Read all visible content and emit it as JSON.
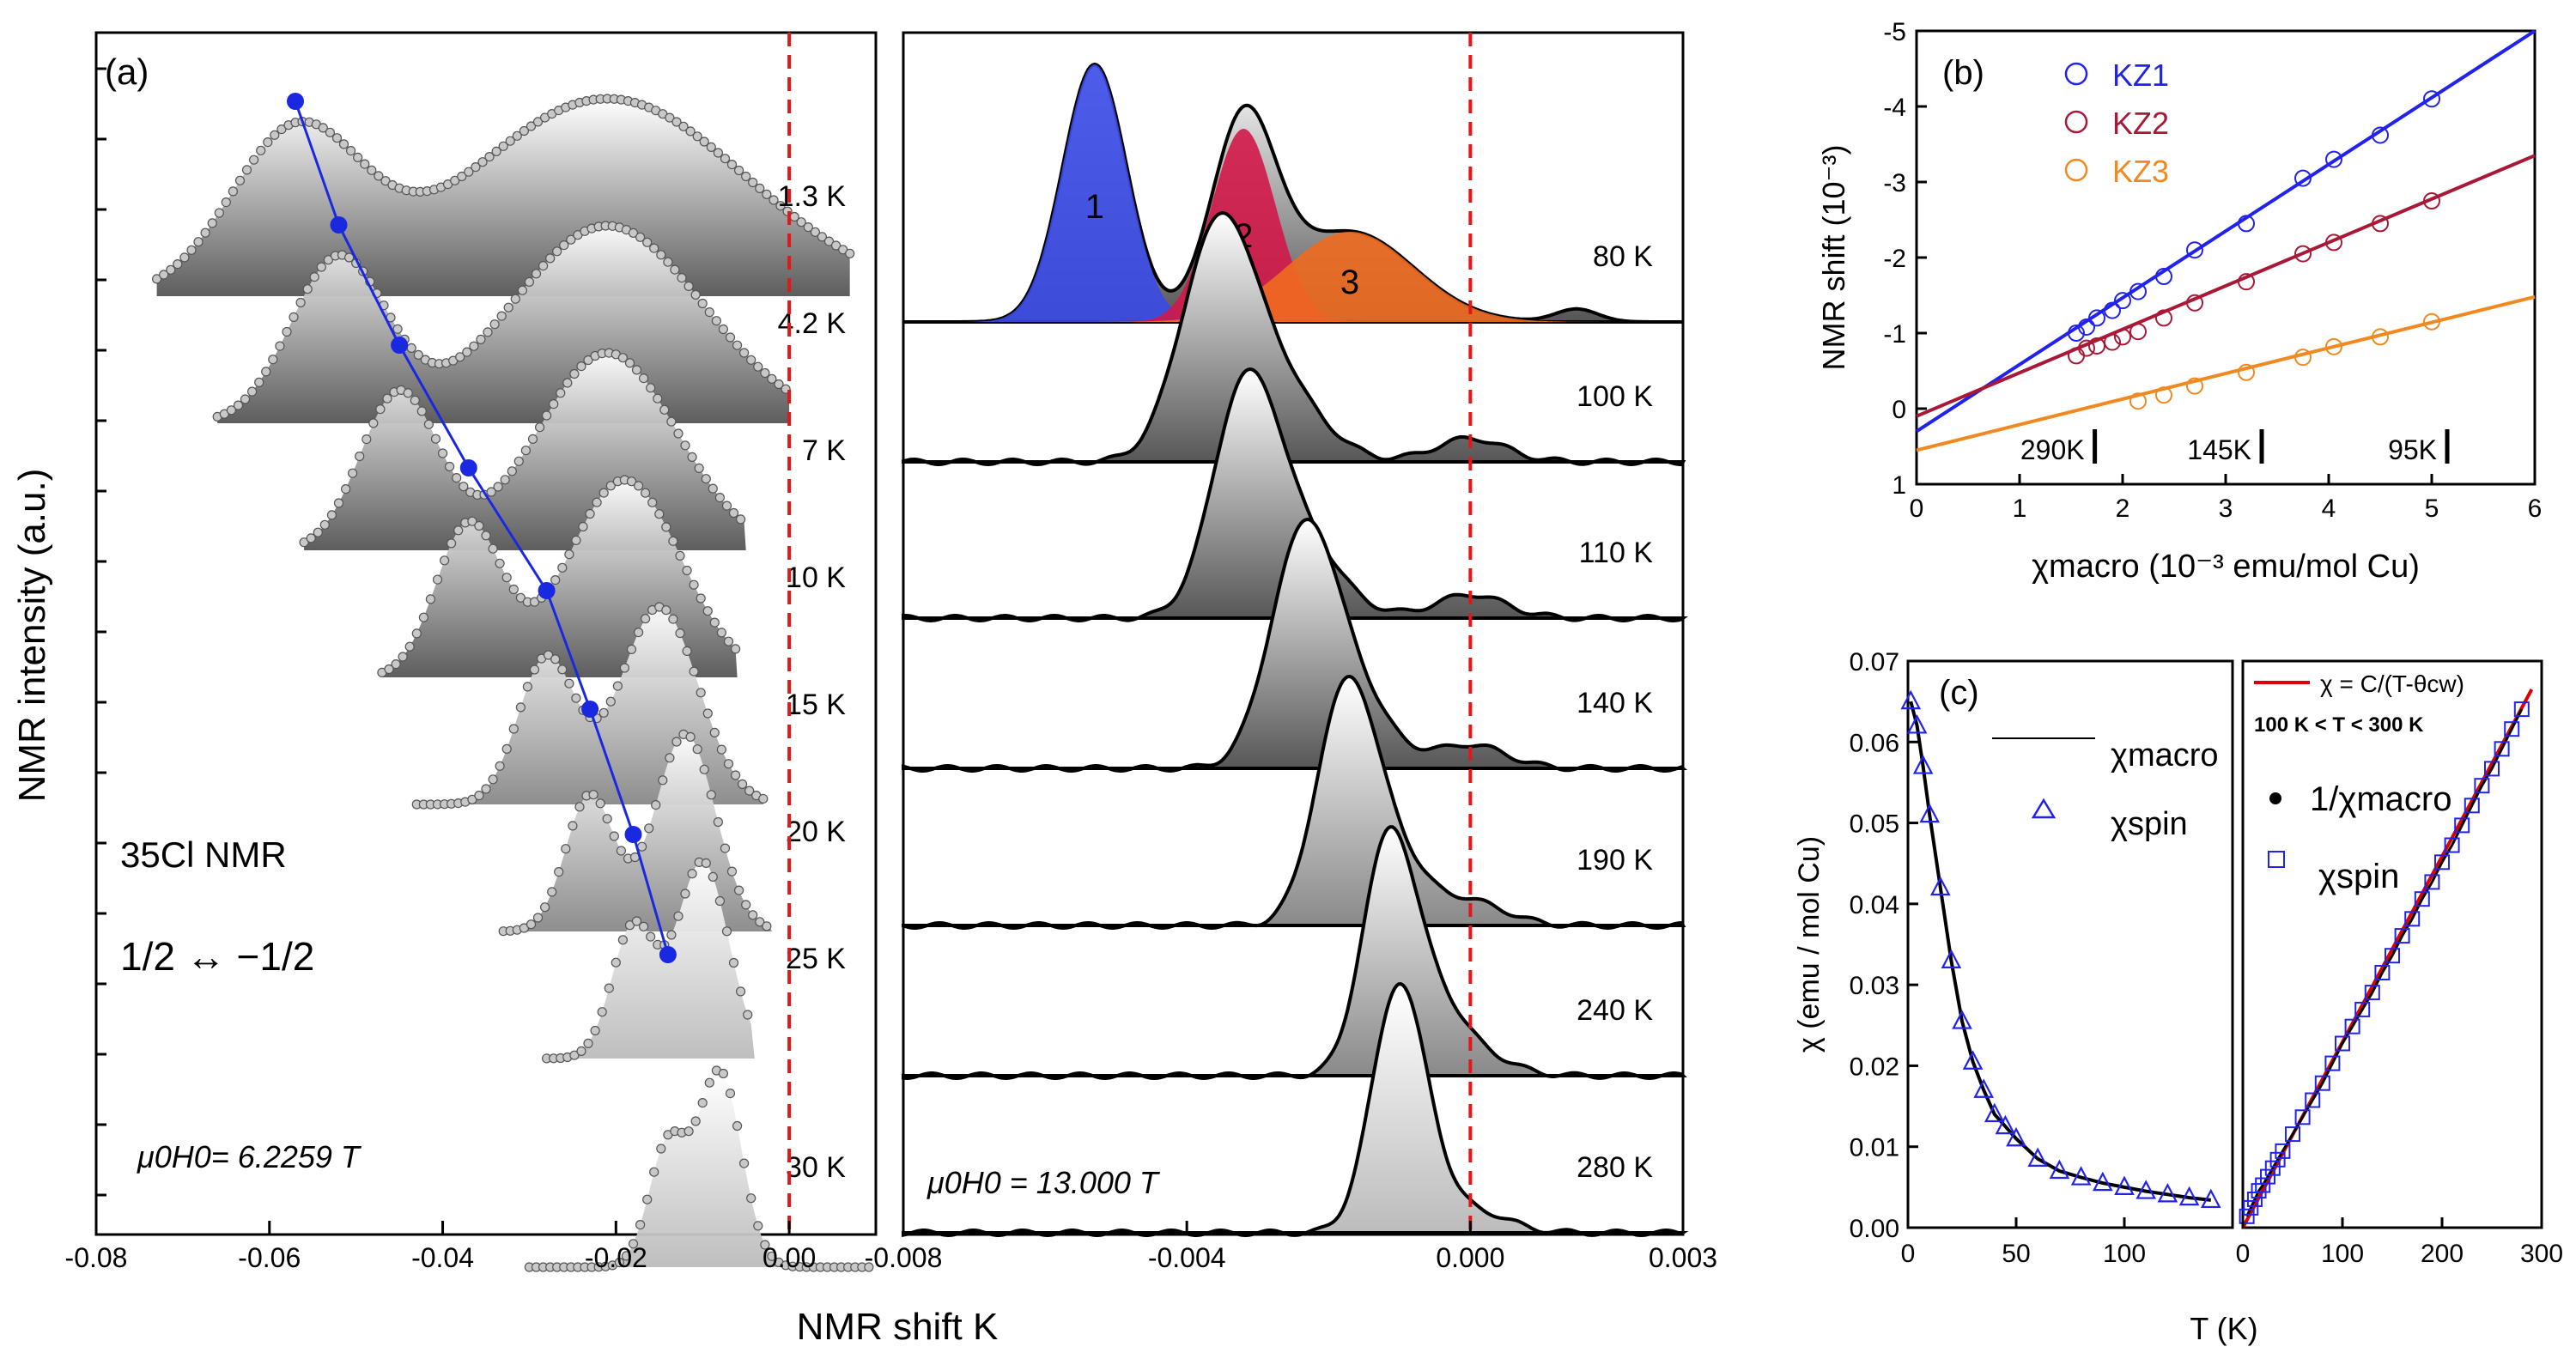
{
  "chart_data": [
    {
      "id": "a-left",
      "type": "line",
      "panel_label": "(a)",
      "xlabel": "NMR shift K",
      "ylabel": "NMR intensity (a.u.)",
      "xlim": [
        -0.08,
        0.01
      ],
      "xticks": [
        "-0.08",
        "-0.06",
        "-0.04",
        "-0.02",
        "0.00"
      ],
      "xtick_values": [
        -0.08,
        -0.06,
        -0.04,
        -0.02,
        0.0
      ],
      "annotation_nucleus": "35Cl  NMR",
      "annotation_transition": "1/2 ↔ −1/2",
      "field_label": "μ0H0= 6.2259 T",
      "reference_line_x": 0.0,
      "series": [
        {
          "name": "1.3 K",
          "baseline_y": 0.0,
          "peaks": [
            {
              "c": -0.057,
              "w": 0.0075,
              "a": 1.0
            },
            {
              "c": -0.021,
              "w": 0.016,
              "a": 1.25
            }
          ],
          "range": [
            -0.073,
            0.007
          ],
          "scale": 0.75
        },
        {
          "name": "4.2 K",
          "baseline_y": 1.0,
          "peaks": [
            {
              "c": -0.052,
              "w": 0.0055,
              "a": 1.0
            },
            {
              "c": -0.021,
              "w": 0.011,
              "a": 1.2
            }
          ],
          "range": [
            -0.066,
            0.0
          ],
          "scale": 0.75
        },
        {
          "name": "7 K",
          "baseline_y": 2.0,
          "peaks": [
            {
              "c": -0.045,
              "w": 0.0045,
              "a": 1.0
            },
            {
              "c": -0.021,
              "w": 0.008,
              "a": 1.25
            }
          ],
          "range": [
            -0.056,
            -0.005
          ],
          "scale": 0.75
        },
        {
          "name": "10 K",
          "baseline_y": 3.0,
          "peaks": [
            {
              "c": -0.037,
              "w": 0.0038,
              "a": 1.0
            },
            {
              "c": -0.019,
              "w": 0.0065,
              "a": 1.3
            }
          ],
          "range": [
            -0.047,
            -0.006
          ],
          "scale": 0.75
        },
        {
          "name": "15 K",
          "baseline_y": 4.0,
          "peaks": [
            {
              "c": -0.028,
              "w": 0.0033,
              "a": 1.0
            },
            {
              "c": -0.015,
              "w": 0.0045,
              "a": 1.35
            }
          ],
          "range": [
            -0.043,
            -0.003
          ],
          "scale": 0.75
        },
        {
          "name": "20 K",
          "baseline_y": 5.0,
          "peaks": [
            {
              "c": -0.023,
              "w": 0.0028,
              "a": 1.0
            },
            {
              "c": -0.012,
              "w": 0.0035,
              "a": 1.45
            }
          ],
          "range": [
            -0.033,
            -0.002
          ],
          "scale": 0.75
        },
        {
          "name": "25 K",
          "baseline_y": 6.0,
          "peaks": [
            {
              "c": -0.018,
              "w": 0.0025,
              "a": 1.0
            },
            {
              "c": -0.01,
              "w": 0.003,
              "a": 1.5
            }
          ],
          "range": [
            -0.028,
            -0.004
          ],
          "scale": 0.75
        },
        {
          "name": "30 K",
          "baseline_y": 7.0,
          "peaks": [
            {
              "c": -0.014,
              "w": 0.0022,
              "a": 1.0
            },
            {
              "c": -0.008,
              "w": 0.0025,
              "a": 1.6
            }
          ],
          "range": [
            -0.03,
            0.01
          ],
          "scale": 0.75
        }
      ],
      "peak_track_x": [
        -0.057,
        -0.052,
        -0.045,
        -0.037,
        -0.028,
        -0.023,
        -0.018,
        -0.014
      ]
    },
    {
      "id": "a-right",
      "type": "area",
      "xlim": [
        -0.008,
        0.003
      ],
      "xticks": [
        "-0.008",
        "-0.004",
        "0.000",
        "0.003"
      ],
      "xtick_values": [
        -0.008,
        -0.004,
        0.0,
        0.003
      ],
      "field_label": "μ0H0 = 13.000 T",
      "reference_line_x": 0.0,
      "components": [
        {
          "name": "1",
          "center": -0.0053,
          "width": 0.00045,
          "amp": 1.0,
          "color": "#3a4be8"
        },
        {
          "name": "2",
          "center": -0.0032,
          "width": 0.00045,
          "amp": 0.75,
          "color": "#d2184a"
        },
        {
          "name": "3",
          "center": -0.0017,
          "width": 0.0009,
          "amp": 0.35,
          "color": "#ef6a20"
        }
      ],
      "series": [
        {
          "name": "80 K",
          "baseline_y": 0.0
        },
        {
          "name": "100 K",
          "baseline_y": 1.0,
          "c": -0.0036,
          "w": 0.0005,
          "tail": 0.0012
        },
        {
          "name": "110 K",
          "baseline_y": 2.0,
          "c": -0.0032,
          "w": 0.00045,
          "tail": 0.0011
        },
        {
          "name": "140 K",
          "baseline_y": 3.0,
          "c": -0.0024,
          "w": 0.00045,
          "tail": 0.001
        },
        {
          "name": "190 K",
          "baseline_y": 4.0,
          "c": -0.0018,
          "w": 0.0004,
          "tail": 0.0009
        },
        {
          "name": "240 K",
          "baseline_y": 5.0,
          "c": -0.0012,
          "w": 0.00035,
          "tail": 0.0008
        },
        {
          "name": "280 K",
          "baseline_y": 6.0,
          "c": -0.0011,
          "w": 0.00035,
          "tail": 0.0006
        }
      ]
    },
    {
      "id": "b",
      "type": "scatter",
      "panel_label": "(b)",
      "xlabel": "χmacro (10⁻³ emu/mol Cu)",
      "ylabel": "NMR shift (10⁻³)",
      "xlim": [
        0,
        6
      ],
      "ylim": [
        1,
        -5
      ],
      "xticks": [
        "0",
        "1",
        "2",
        "3",
        "4",
        "5",
        "6"
      ],
      "yticks": [
        "1",
        "0",
        "-1",
        "-2",
        "-3",
        "-4",
        "-5"
      ],
      "temperature_marks": [
        {
          "label": "290K",
          "x": 1.58
        },
        {
          "label": "145K",
          "x": 3.2
        },
        {
          "label": "95K",
          "x": 5.0
        }
      ],
      "series": [
        {
          "name": "KZ1",
          "color": "#2222ee",
          "x": [
            1.55,
            1.65,
            1.75,
            1.9,
            2.0,
            2.15,
            2.4,
            2.7,
            3.2,
            3.75,
            4.05,
            4.5,
            5.0
          ],
          "y": [
            -1.0,
            -1.08,
            -1.2,
            -1.3,
            -1.43,
            -1.55,
            -1.75,
            -2.1,
            -2.45,
            -3.05,
            -3.3,
            -3.62,
            -4.1
          ],
          "fit": [
            [
              0,
              0.3
            ],
            [
              6,
              -5.0
            ]
          ]
        },
        {
          "name": "KZ2",
          "color": "#aa1838",
          "x": [
            1.55,
            1.65,
            1.75,
            1.9,
            2.0,
            2.15,
            2.4,
            2.7,
            3.2,
            3.75,
            4.05,
            4.5,
            5.0
          ],
          "y": [
            -0.7,
            -0.8,
            -0.83,
            -0.88,
            -0.95,
            -1.02,
            -1.2,
            -1.4,
            -1.68,
            -2.05,
            -2.2,
            -2.45,
            -2.75
          ],
          "fit": [
            [
              0,
              0.1
            ],
            [
              6,
              -3.35
            ]
          ]
        },
        {
          "name": "KZ3",
          "color": "#f08a20",
          "x": [
            2.15,
            2.4,
            2.7,
            3.2,
            3.75,
            4.05,
            4.5,
            5.0
          ],
          "y": [
            -0.1,
            -0.18,
            -0.3,
            -0.48,
            -0.68,
            -0.82,
            -0.95,
            -1.15
          ],
          "fit": [
            [
              0,
              0.55
            ],
            [
              6,
              -1.48
            ]
          ]
        }
      ]
    },
    {
      "id": "c-left",
      "type": "scatter",
      "panel_label": "(c)",
      "xlabel": "T (K)",
      "ylabel": "χ (emu / mol Cu)",
      "xlim": [
        0,
        150
      ],
      "ylim": [
        0.0,
        0.07
      ],
      "xticks": [
        "0",
        "50",
        "100"
      ],
      "yticks": [
        "0.00",
        "0.01",
        "0.02",
        "0.03",
        "0.04",
        "0.05",
        "0.06",
        "0.07"
      ],
      "legend": [
        {
          "name": "χmacro",
          "style": "line"
        },
        {
          "name": "χspin",
          "style": "triangle"
        }
      ],
      "series": [
        {
          "name": "χspin",
          "color": "#2222ee",
          "x": [
            1.3,
            4.2,
            7,
            10,
            15,
            20,
            25,
            30,
            35,
            40,
            45,
            50,
            60,
            70,
            80,
            90,
            100,
            110,
            120,
            130,
            140
          ],
          "y": [
            0.065,
            0.062,
            0.057,
            0.051,
            0.042,
            0.033,
            0.0255,
            0.0205,
            0.017,
            0.014,
            0.0125,
            0.011,
            0.0085,
            0.007,
            0.0062,
            0.0055,
            0.005,
            0.0045,
            0.0041,
            0.0037,
            0.0034
          ]
        }
      ]
    },
    {
      "id": "c-right",
      "type": "scatter",
      "xlim": [
        0,
        300
      ],
      "xticks": [
        "0",
        "100",
        "200",
        "300"
      ],
      "legend": [
        {
          "name": "χ = C/(T-θcw)",
          "style": "line",
          "color": "#dd0000"
        },
        {
          "name": "100 K < T < 300 K",
          "style": "text"
        },
        {
          "name": "1/χmacro",
          "style": "dot"
        },
        {
          "name": "χspin",
          "style": "square"
        }
      ],
      "series": [
        {
          "name": "χspin",
          "color": "#2222ee",
          "x": [
            4,
            8,
            12,
            16,
            20,
            25,
            30,
            35,
            40,
            50,
            60,
            70,
            80,
            90,
            100,
            110,
            120,
            130,
            140,
            150,
            160,
            170,
            180,
            190,
            200,
            210,
            220,
            230,
            240,
            250,
            260,
            270,
            280
          ],
          "frac": [
            0.02,
            0.035,
            0.05,
            0.065,
            0.075,
            0.09,
            0.105,
            0.12,
            0.135,
            0.165,
            0.195,
            0.225,
            0.255,
            0.29,
            0.325,
            0.355,
            0.385,
            0.415,
            0.45,
            0.48,
            0.515,
            0.545,
            0.58,
            0.61,
            0.645,
            0.675,
            0.71,
            0.745,
            0.78,
            0.81,
            0.845,
            0.88,
            0.915
          ]
        }
      ]
    }
  ]
}
